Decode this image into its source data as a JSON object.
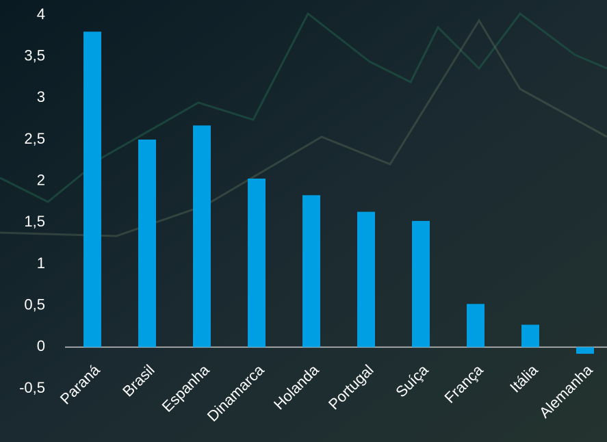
{
  "chart_data": {
    "type": "bar",
    "categories": [
      "Paraná",
      "Brasil",
      "Espanha",
      "Dinamarca",
      "Holanda",
      "Portugal",
      "Suíça",
      "França",
      "Itália",
      "Alemanha"
    ],
    "values": [
      3.8,
      2.5,
      2.67,
      2.03,
      1.83,
      1.63,
      1.52,
      0.52,
      0.27,
      -0.08
    ],
    "color": "#009fe3",
    "ylim": [
      -0.5,
      4
    ],
    "yticks": [
      {
        "value": -0.5,
        "label": "-0,5"
      },
      0,
      {
        "value": 0.5,
        "label": "0,5"
      },
      1,
      {
        "value": 1.5,
        "label": "1,5"
      },
      2,
      {
        "value": 2.5,
        "label": "2,5"
      },
      3,
      {
        "value": 3.5,
        "label": "3,5"
      },
      4
    ]
  }
}
